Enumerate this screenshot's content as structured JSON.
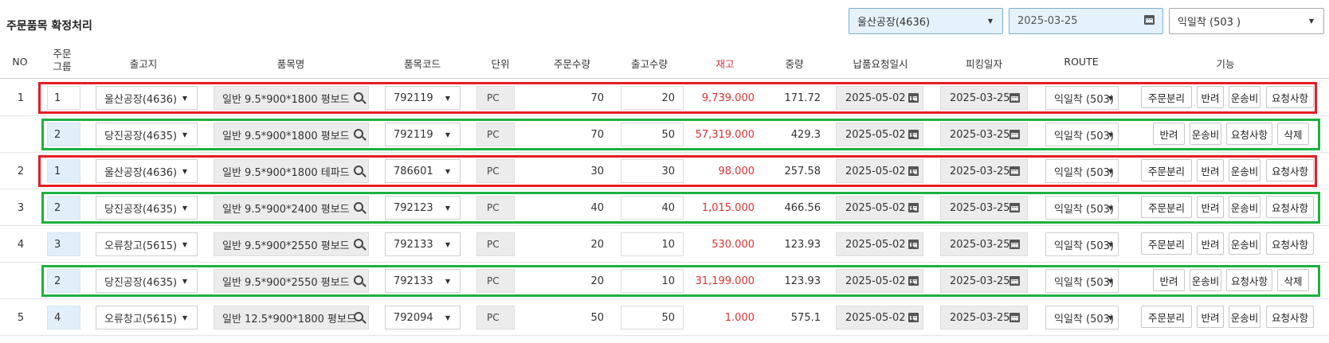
{
  "page_title": "주문품목 확정처리",
  "filters": {
    "plant": "울산공장(4636)",
    "date": "2025-03-25",
    "route": "익일착 (503 )"
  },
  "headers": {
    "no": "NO",
    "group_line1": "주문",
    "group_line2": "그룹",
    "warehouse": "출고지",
    "item_name": "품목명",
    "item_code": "품목코드",
    "unit": "단위",
    "order_qty": "주문수량",
    "ship_qty": "출고수량",
    "stock": "재고",
    "weight": "중량",
    "delivery_date": "납품요청일시",
    "picking_date": "피킹일자",
    "route": "ROUTE",
    "actions": "기능"
  },
  "colors": {
    "highlight_red": "#e61c23",
    "highlight_green": "#1db140",
    "stock_red": "#e03030",
    "group_blue": "#e1effa"
  },
  "rows": [
    {
      "no": "1",
      "group": "1",
      "warehouse": "울산공장(4636)",
      "item": "일반 9.5*900*1800 평보드",
      "code": "792119",
      "unit": "PC",
      "order_qty": "70",
      "ship_qty": "20",
      "stock": "9,739.000",
      "weight": "171.72",
      "delivery": "2025-05-02 1",
      "picking": "2025-03-25",
      "route": "익일착 (503)",
      "buttons": [
        "주문분리",
        "반려",
        "운송비",
        "요청사항"
      ],
      "highlight": "red",
      "group_blue": false
    },
    {
      "no": "",
      "group": "2",
      "warehouse": "당진공장(4635)",
      "item": "일반 9.5*900*1800 평보드",
      "code": "792119",
      "unit": "PC",
      "order_qty": "70",
      "ship_qty": "50",
      "stock": "57,319.000",
      "weight": "429.3",
      "delivery": "2025-05-02 1",
      "picking": "2025-03-25",
      "route": "익일착 (503)",
      "buttons": [
        "반려",
        "운송비",
        "요청사항",
        "삭제"
      ],
      "highlight": "green",
      "group_blue": true
    },
    {
      "no": "2",
      "group": "1",
      "warehouse": "울산공장(4636)",
      "item": "일반 9.5*900*1800 테파드",
      "code": "786601",
      "unit": "PC",
      "order_qty": "30",
      "ship_qty": "30",
      "stock": "98.000",
      "weight": "257.58",
      "delivery": "2025-05-02 1",
      "picking": "2025-03-25",
      "route": "익일착 (503)",
      "buttons": [
        "주문분리",
        "반려",
        "운송비",
        "요청사항"
      ],
      "highlight": "red",
      "group_blue": true
    },
    {
      "no": "3",
      "group": "2",
      "warehouse": "당진공장(4635)",
      "item": "일반 9.5*900*2400 평보드",
      "code": "792123",
      "unit": "PC",
      "order_qty": "40",
      "ship_qty": "40",
      "stock": "1,015.000",
      "weight": "466.56",
      "delivery": "2025-05-02 1",
      "picking": "2025-03-25",
      "route": "익일착 (503)",
      "buttons": [
        "주문분리",
        "반려",
        "운송비",
        "요청사항"
      ],
      "highlight": "green",
      "group_blue": true
    },
    {
      "no": "4",
      "group": "3",
      "warehouse": "오류창고(5615)",
      "item": "일반 9.5*900*2550 평보드",
      "code": "792133",
      "unit": "PC",
      "order_qty": "20",
      "ship_qty": "10",
      "stock": "530.000",
      "weight": "123.93",
      "delivery": "2025-05-02 1",
      "picking": "2025-03-25",
      "route": "익일착 (503)",
      "buttons": [
        "주문분리",
        "반려",
        "운송비",
        "요청사항"
      ],
      "highlight": "",
      "group_blue": true
    },
    {
      "no": "",
      "group": "2",
      "warehouse": "당진공장(4635)",
      "item": "일반 9.5*900*2550 평보드",
      "code": "792133",
      "unit": "PC",
      "order_qty": "20",
      "ship_qty": "10",
      "stock": "31,199.000",
      "weight": "123.93",
      "delivery": "2025-05-02 1",
      "picking": "2025-03-25",
      "route": "익일착 (503)",
      "buttons": [
        "반려",
        "운송비",
        "요청사항",
        "삭제"
      ],
      "highlight": "green",
      "group_blue": true
    },
    {
      "no": "5",
      "group": "4",
      "warehouse": "오류창고(5615)",
      "item": "일반 12.5*900*1800 평보드",
      "code": "792094",
      "unit": "PC",
      "order_qty": "50",
      "ship_qty": "50",
      "stock": "1.000",
      "weight": "575.1",
      "delivery": "2025-05-02 1",
      "picking": "2025-03-25",
      "route": "익일착 (503)",
      "buttons": [
        "주문분리",
        "반려",
        "운송비",
        "요청사항"
      ],
      "highlight": "",
      "group_blue": true
    }
  ]
}
